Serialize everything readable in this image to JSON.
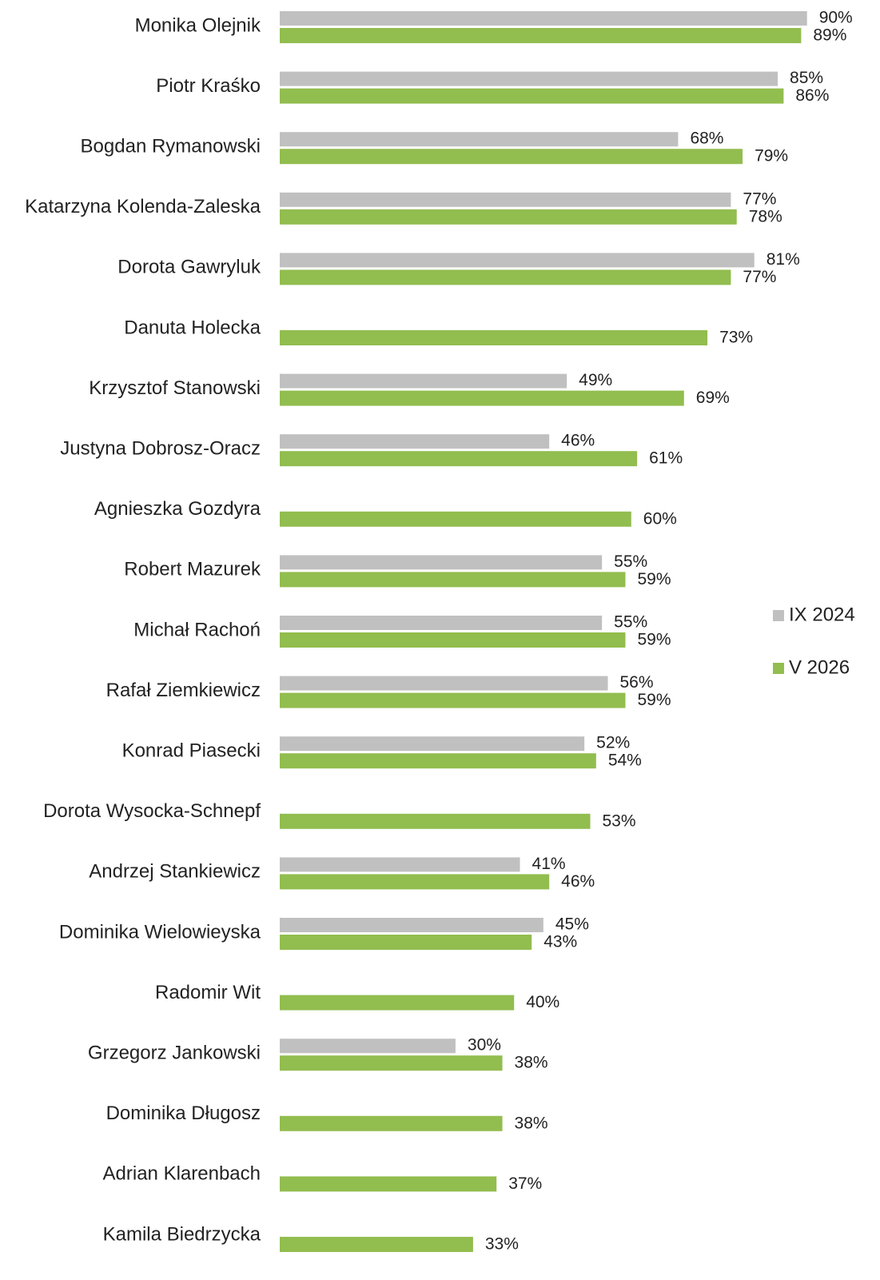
{
  "chart_data": {
    "type": "bar",
    "orientation": "horizontal",
    "categories": [
      "Monika Olejnik",
      "Piotr Kraśko",
      "Bogdan Rymanowski",
      "Katarzyna Kolenda-Zaleska",
      "Dorota Gawryluk",
      "Danuta Holecka",
      "Krzysztof Stanowski",
      "Justyna Dobrosz-Oracz",
      "Agnieszka Gozdyra",
      "Robert Mazurek",
      "Michał Rachoń",
      "Rafał Ziemkiewicz",
      "Konrad Piasecki",
      "Dorota Wysocka-Schnepf",
      "Andrzej Stankiewicz",
      "Dominika Wielowieyska",
      "Radomir Wit",
      "Grzegorz Jankowski",
      "Dominika Długosz",
      "Adrian Klarenbach",
      "Kamila Biedrzycka"
    ],
    "series": [
      {
        "name": "IX 2024",
        "color": "#c0c0c0",
        "values": [
          90,
          85,
          68,
          77,
          81,
          null,
          49,
          46,
          null,
          55,
          55,
          56,
          52,
          null,
          41,
          45,
          null,
          30,
          null,
          null,
          null
        ],
        "value_labels": [
          "90%",
          "85%",
          "68%",
          "77%",
          "81%",
          null,
          "49%",
          "46%",
          null,
          "55%",
          "55%",
          "56%",
          "52%",
          null,
          "41%",
          "45%",
          null,
          "30%",
          null,
          null,
          null
        ]
      },
      {
        "name": "V 2026",
        "color": "#92bd4f",
        "values": [
          89,
          86,
          79,
          78,
          77,
          73,
          69,
          61,
          60,
          59,
          59,
          59,
          54,
          53,
          46,
          43,
          40,
          38,
          38,
          37,
          33
        ],
        "value_labels": [
          "89%",
          "86%",
          "79%",
          "78%",
          "77%",
          "73%",
          "69%",
          "61%",
          "60%",
          "59%",
          "59%",
          "59%",
          "54%",
          "53%",
          "46%",
          "43%",
          "40%",
          "38%",
          "38%",
          "37%",
          "33%"
        ]
      }
    ],
    "xlim": [
      0,
      100
    ],
    "legend": "right"
  }
}
